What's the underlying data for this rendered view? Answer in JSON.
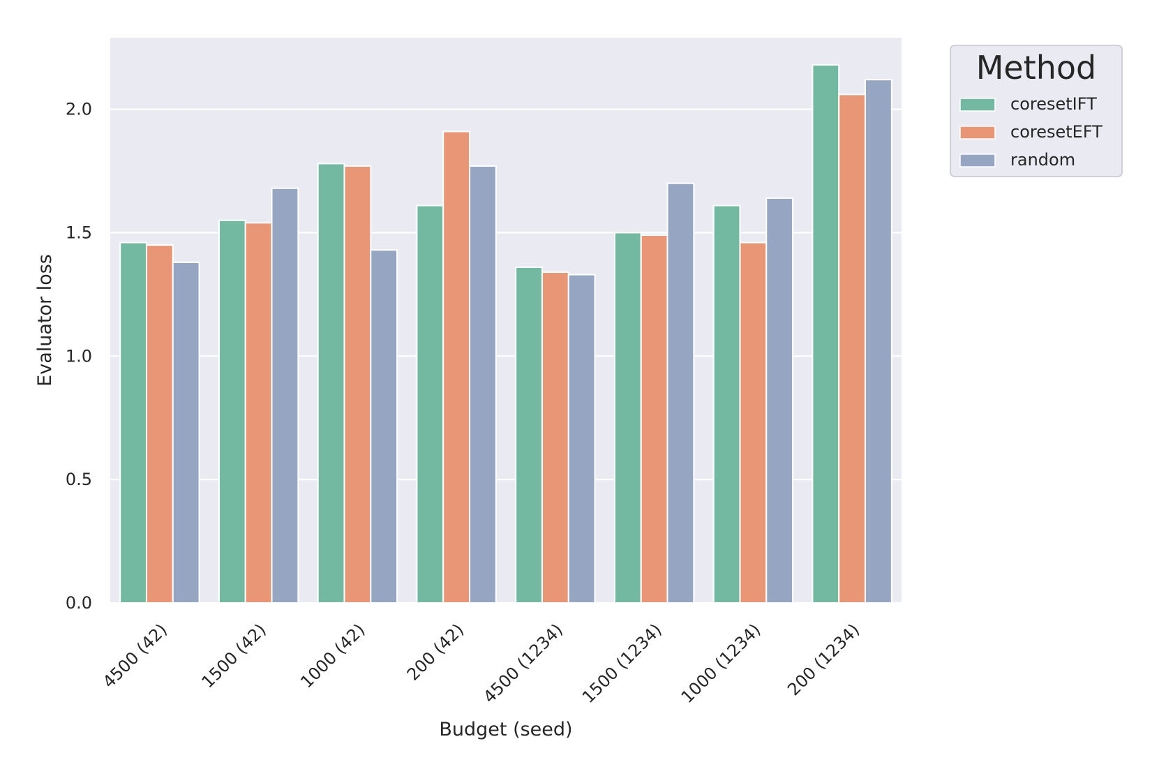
{
  "chart_data": {
    "type": "bar",
    "title": "",
    "xlabel": "Budget (seed)",
    "ylabel": "Evaluator loss",
    "categories": [
      "4500 (42)",
      "1500 (42)",
      "1000 (42)",
      "200 (42)",
      "4500 (1234)",
      "1500 (1234)",
      "1000 (1234)",
      "200 (1234)"
    ],
    "series": [
      {
        "name": "coresetIFT",
        "color": "#73b8a1",
        "values": [
          1.46,
          1.55,
          1.78,
          1.61,
          1.36,
          1.5,
          1.61,
          2.18
        ]
      },
      {
        "name": "coresetEFT",
        "color": "#e99677",
        "values": [
          1.45,
          1.54,
          1.77,
          1.91,
          1.34,
          1.49,
          1.46,
          2.06
        ]
      },
      {
        "name": "random",
        "color": "#96a5c2",
        "values": [
          1.38,
          1.68,
          1.43,
          1.77,
          1.33,
          1.7,
          1.64,
          2.12
        ]
      }
    ],
    "ylim": [
      0,
      2.29
    ],
    "yticks": [
      "0.0",
      "0.5",
      "1.0",
      "1.5",
      "2.0"
    ],
    "grid": true,
    "legend": {
      "title": "Method",
      "placement": "outside-top-right"
    },
    "plot_background": "#eaeaf2"
  }
}
